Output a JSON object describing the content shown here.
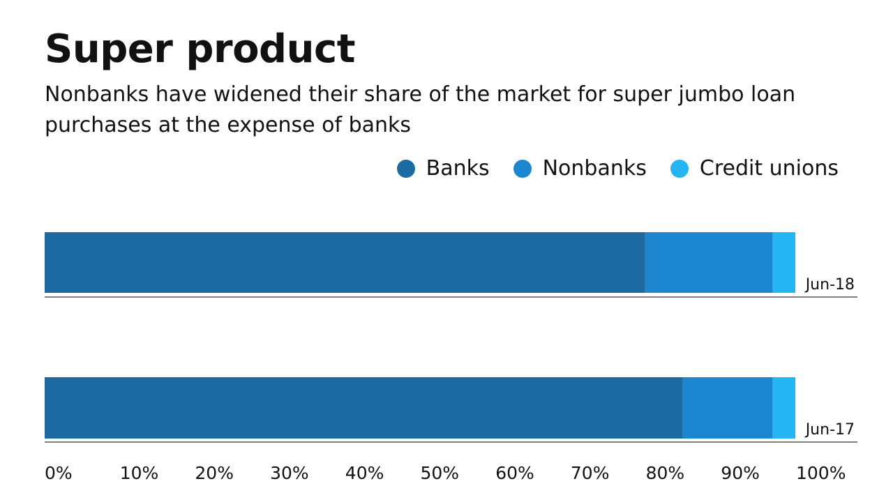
{
  "chart_data": {
    "type": "bar",
    "orientation": "horizontal",
    "stacked": true,
    "title": "Super product",
    "subtitle": "Nonbanks have widened their share of the market for super jumbo loan purchases at the expense of banks",
    "categories": [
      "Jun-18",
      "Jun-17"
    ],
    "series": [
      {
        "name": "Banks",
        "color": "#1b6aa1",
        "values": [
          80,
          85
        ]
      },
      {
        "name": "Nonbanks",
        "color": "#1c87d0",
        "values": [
          17,
          12
        ]
      },
      {
        "name": "Credit unions",
        "color": "#24b5f2",
        "values": [
          3,
          3
        ]
      }
    ],
    "xlim": [
      0,
      100
    ],
    "xticks": [
      "0%",
      "10%",
      "20%",
      "30%",
      "40%",
      "50%",
      "60%",
      "70%",
      "80%",
      "90%",
      "100%"
    ],
    "grid": false,
    "legend": "top-right"
  }
}
